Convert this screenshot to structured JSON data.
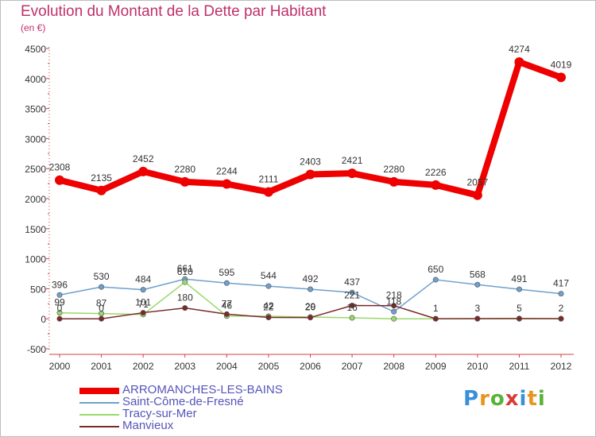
{
  "title": "Evolution du Montant de la Dette par Habitant",
  "subtitle": "(en €)",
  "logo": {
    "text": "Proxiti",
    "letter_colors": [
      "#3a8fd8",
      "#e8941e",
      "#58b33a",
      "#d83a3a",
      "#3a8fd8",
      "#e8941e",
      "#58b33a"
    ]
  },
  "chart_data": {
    "type": "line",
    "x": [
      "2000",
      "2001",
      "2002",
      "2003",
      "2004",
      "2005",
      "2006",
      "2007",
      "2008",
      "2009",
      "2010",
      "2011",
      "2012"
    ],
    "ylim": [
      -500,
      4500
    ],
    "yticks": [
      -500,
      0,
      500,
      1000,
      1500,
      2000,
      2500,
      3000,
      3500,
      4000,
      4500
    ],
    "grid": false,
    "legend_position": "bottom-left",
    "series": [
      {
        "name": "ARROMANCHES-LES-BAINS",
        "color": "#ee0000",
        "width": 8,
        "values": [
          2308,
          2135,
          2452,
          2280,
          2244,
          2111,
          2403,
          2421,
          2280,
          2226,
          2057,
          4274,
          4019
        ],
        "labels": [
          "2308",
          "2135",
          "2452",
          "2280",
          "2244",
          "2111",
          "2403",
          "2421",
          "2280",
          "2226",
          "2057",
          "4274",
          "4019"
        ]
      },
      {
        "name": "Saint-Côme-de-Fresné",
        "color": "#6fa0cc",
        "width": 1.5,
        "values": [
          396,
          530,
          484,
          661,
          595,
          544,
          492,
          437,
          118,
          650,
          568,
          491,
          417
        ],
        "labels": [
          "396",
          "530",
          "484",
          "661",
          "595",
          "544",
          "492",
          "437",
          "118",
          "650",
          "568",
          "491",
          "417"
        ]
      },
      {
        "name": "Tracy-sur-Mer",
        "color": "#9ad86a",
        "width": 1.5,
        "values": [
          99,
          87,
          71,
          610,
          46,
          42,
          29,
          16,
          0,
          0,
          0,
          0,
          0
        ],
        "labels": [
          "99",
          "87",
          "71",
          "610",
          "46",
          "42",
          "29",
          "16",
          "",
          "",
          "",
          "",
          ""
        ]
      },
      {
        "name": "Manvieux",
        "color": "#7a2a2a",
        "width": 1.5,
        "values": [
          0,
          0,
          101,
          180,
          77,
          22,
          20,
          221,
          218,
          1,
          3,
          5,
          2
        ],
        "labels": [
          "0",
          "0",
          "101",
          "180",
          "77",
          "22",
          "20",
          "221",
          "218",
          "1",
          "3",
          "5",
          "2"
        ]
      }
    ]
  }
}
